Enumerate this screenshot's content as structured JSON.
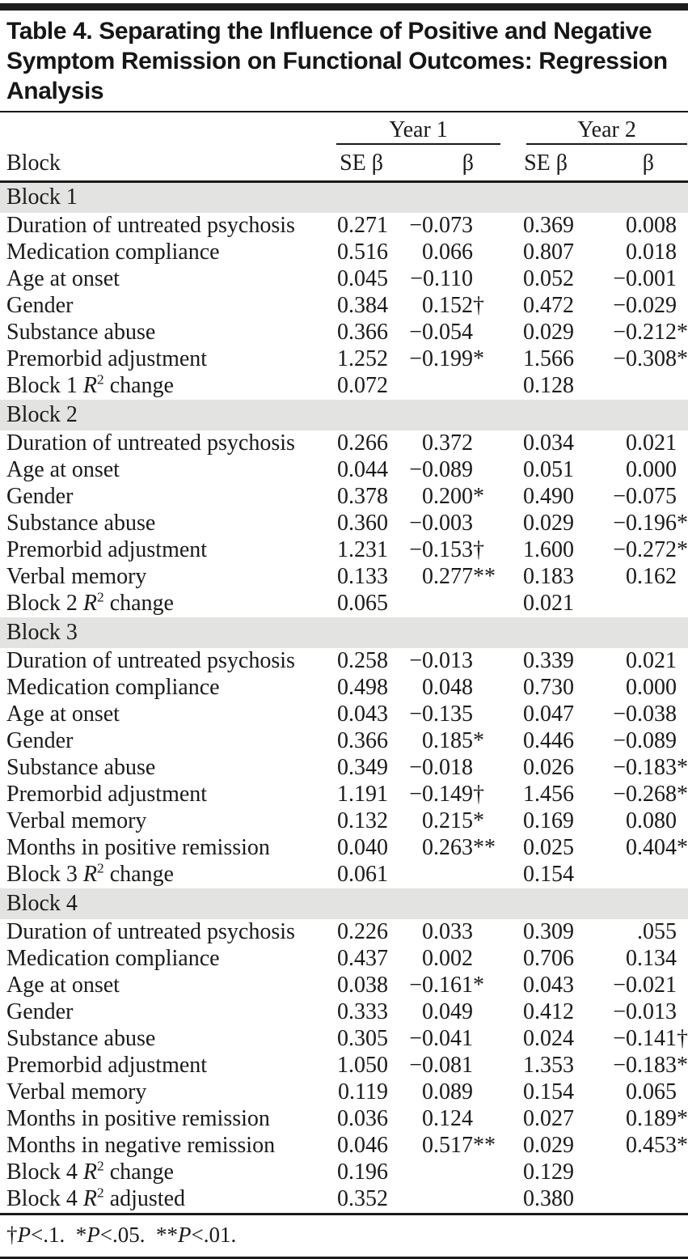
{
  "title": "Table 4. Separating the Influence of Positive and Negative Symptom Remission on Functional Outcomes: Regression Analysis",
  "header": {
    "block_label": "Block",
    "year1": "Year 1",
    "year2": "Year 2",
    "se_beta": "SE β",
    "beta": "β"
  },
  "colors": {
    "band_gray": "#e3e3e2",
    "rule_black": "#1a1a1a"
  },
  "sections": [
    {
      "name": "Block 1",
      "rows": [
        {
          "label": "Duration of untreated psychosis",
          "y1_se": "0.271",
          "y1_b": "−0.073",
          "y1_sym": "",
          "y2_se": "0.369",
          "y2_b": "0.008",
          "y2_sym": ""
        },
        {
          "label": "Medication compliance",
          "y1_se": "0.516",
          "y1_b": "0.066",
          "y1_sym": "",
          "y2_se": "0.807",
          "y2_b": "0.018",
          "y2_sym": ""
        },
        {
          "label": "Age at onset",
          "y1_se": "0.045",
          "y1_b": "−0.110",
          "y1_sym": "",
          "y2_se": "0.052",
          "y2_b": "−0.001",
          "y2_sym": ""
        },
        {
          "label": "Gender",
          "y1_se": "0.384",
          "y1_b": "0.152",
          "y1_sym": "†",
          "y2_se": "0.472",
          "y2_b": "−0.029",
          "y2_sym": ""
        },
        {
          "label": "Substance abuse",
          "y1_se": "0.366",
          "y1_b": "−0.054",
          "y1_sym": "",
          "y2_se": "0.029",
          "y2_b": "−0.212",
          "y2_sym": "*"
        },
        {
          "label": "Premorbid adjustment",
          "y1_se": "1.252",
          "y1_b": "−0.199",
          "y1_sym": "*",
          "y2_se": "1.566",
          "y2_b": "−0.308",
          "y2_sym": "**"
        },
        {
          "label": "Block 1 R² change",
          "y1_se": "0.072",
          "y1_b": "",
          "y1_sym": "",
          "y2_se": "0.128",
          "y2_b": "",
          "y2_sym": ""
        }
      ]
    },
    {
      "name": "Block 2",
      "rows": [
        {
          "label": "Duration of untreated psychosis",
          "y1_se": "0.266",
          "y1_b": "0.372",
          "y1_sym": "",
          "y2_se": "0.034",
          "y2_b": "0.021",
          "y2_sym": ""
        },
        {
          "label": "Age at onset",
          "y1_se": "0.044",
          "y1_b": "−0.089",
          "y1_sym": "",
          "y2_se": "0.051",
          "y2_b": "0.000",
          "y2_sym": ""
        },
        {
          "label": "Gender",
          "y1_se": "0.378",
          "y1_b": "0.200",
          "y1_sym": "*",
          "y2_se": "0.490",
          "y2_b": "−0.075",
          "y2_sym": ""
        },
        {
          "label": "Substance abuse",
          "y1_se": "0.360",
          "y1_b": "−0.003",
          "y1_sym": "",
          "y2_se": "0.029",
          "y2_b": "−0.196",
          "y2_sym": "*"
        },
        {
          "label": "Premorbid adjustment",
          "y1_se": "1.231",
          "y1_b": "−0.153",
          "y1_sym": "†",
          "y2_se": "1.600",
          "y2_b": "−0.272",
          "y2_sym": "**"
        },
        {
          "label": "Verbal memory",
          "y1_se": "0.133",
          "y1_b": "0.277",
          "y1_sym": "**",
          "y2_se": "0.183",
          "y2_b": "0.162",
          "y2_sym": ""
        },
        {
          "label": "Block 2 R² change",
          "y1_se": "0.065",
          "y1_b": "",
          "y1_sym": "",
          "y2_se": "0.021",
          "y2_b": "",
          "y2_sym": ""
        }
      ]
    },
    {
      "name": "Block 3",
      "rows": [
        {
          "label": "Duration of untreated psychosis",
          "y1_se": "0.258",
          "y1_b": "−0.013",
          "y1_sym": "",
          "y2_se": "0.339",
          "y2_b": "0.021",
          "y2_sym": ""
        },
        {
          "label": "Medication compliance",
          "y1_se": "0.498",
          "y1_b": "0.048",
          "y1_sym": "",
          "y2_se": "0.730",
          "y2_b": "0.000",
          "y2_sym": ""
        },
        {
          "label": "Age at onset",
          "y1_se": "0.043",
          "y1_b": "−0.135",
          "y1_sym": "",
          "y2_se": "0.047",
          "y2_b": "−0.038",
          "y2_sym": ""
        },
        {
          "label": "Gender",
          "y1_se": "0.366",
          "y1_b": "0.185",
          "y1_sym": "*",
          "y2_se": "0.446",
          "y2_b": "−0.089",
          "y2_sym": ""
        },
        {
          "label": "Substance abuse",
          "y1_se": "0.349",
          "y1_b": "−0.018",
          "y1_sym": "",
          "y2_se": "0.026",
          "y2_b": "−0.183",
          "y2_sym": "*"
        },
        {
          "label": "Premorbid adjustment",
          "y1_se": "1.191",
          "y1_b": "−0.149",
          "y1_sym": "†",
          "y2_se": "1.456",
          "y2_b": "−0.268",
          "y2_sym": "**"
        },
        {
          "label": "Verbal memory",
          "y1_se": "0.132",
          "y1_b": "0.215",
          "y1_sym": "*",
          "y2_se": "0.169",
          "y2_b": "0.080",
          "y2_sym": ""
        },
        {
          "label": "Months in positive remission",
          "y1_se": "0.040",
          "y1_b": "0.263",
          "y1_sym": "**",
          "y2_se": "0.025",
          "y2_b": "0.404",
          "y2_sym": "**"
        },
        {
          "label": "Block 3 R² change",
          "y1_se": "0.061",
          "y1_b": "",
          "y1_sym": "",
          "y2_se": "0.154",
          "y2_b": "",
          "y2_sym": ""
        }
      ]
    },
    {
      "name": "Block 4",
      "rows": [
        {
          "label": "Duration of untreated psychosis",
          "y1_se": "0.226",
          "y1_b": "0.033",
          "y1_sym": "",
          "y2_se": "0.309",
          "y2_b": ".055",
          "y2_sym": ""
        },
        {
          "label": "Medication compliance",
          "y1_se": "0.437",
          "y1_b": "0.002",
          "y1_sym": "",
          "y2_se": "0.706",
          "y2_b": "0.134",
          "y2_sym": ""
        },
        {
          "label": "Age at onset",
          "y1_se": "0.038",
          "y1_b": "−0.161",
          "y1_sym": "*",
          "y2_se": "0.043",
          "y2_b": "−0.021",
          "y2_sym": ""
        },
        {
          "label": "Gender",
          "y1_se": "0.333",
          "y1_b": "0.049",
          "y1_sym": "",
          "y2_se": "0.412",
          "y2_b": "−0.013",
          "y2_sym": ""
        },
        {
          "label": "Substance abuse",
          "y1_se": "0.305",
          "y1_b": "−0.041",
          "y1_sym": "",
          "y2_se": "0.024",
          "y2_b": "−0.141",
          "y2_sym": "†"
        },
        {
          "label": "Premorbid adjustment",
          "y1_se": "1.050",
          "y1_b": "−0.081",
          "y1_sym": "",
          "y2_se": "1.353",
          "y2_b": "−0.183",
          "y2_sym": "*"
        },
        {
          "label": "Verbal memory",
          "y1_se": "0.119",
          "y1_b": "0.089",
          "y1_sym": "",
          "y2_se": "0.154",
          "y2_b": "0.065",
          "y2_sym": ""
        },
        {
          "label": "Months in positive remission",
          "y1_se": "0.036",
          "y1_b": "0.124",
          "y1_sym": "",
          "y2_se": "0.027",
          "y2_b": "0.189",
          "y2_sym": "*"
        },
        {
          "label": "Months in negative remission",
          "y1_se": "0.046",
          "y1_b": "0.517",
          "y1_sym": "**",
          "y2_se": "0.029",
          "y2_b": "0.453",
          "y2_sym": "**"
        },
        {
          "label": "Block 4 R² change",
          "y1_se": "0.196",
          "y1_b": "",
          "y1_sym": "",
          "y2_se": "0.129",
          "y2_b": "",
          "y2_sym": ""
        },
        {
          "label": "Block 4 R² adjusted",
          "y1_se": "0.352",
          "y1_b": "",
          "y1_sym": "",
          "y2_se": "0.380",
          "y2_b": "",
          "y2_sym": ""
        }
      ]
    }
  ],
  "footnote": "†P<.1.  *P<.05.  **P<.01."
}
